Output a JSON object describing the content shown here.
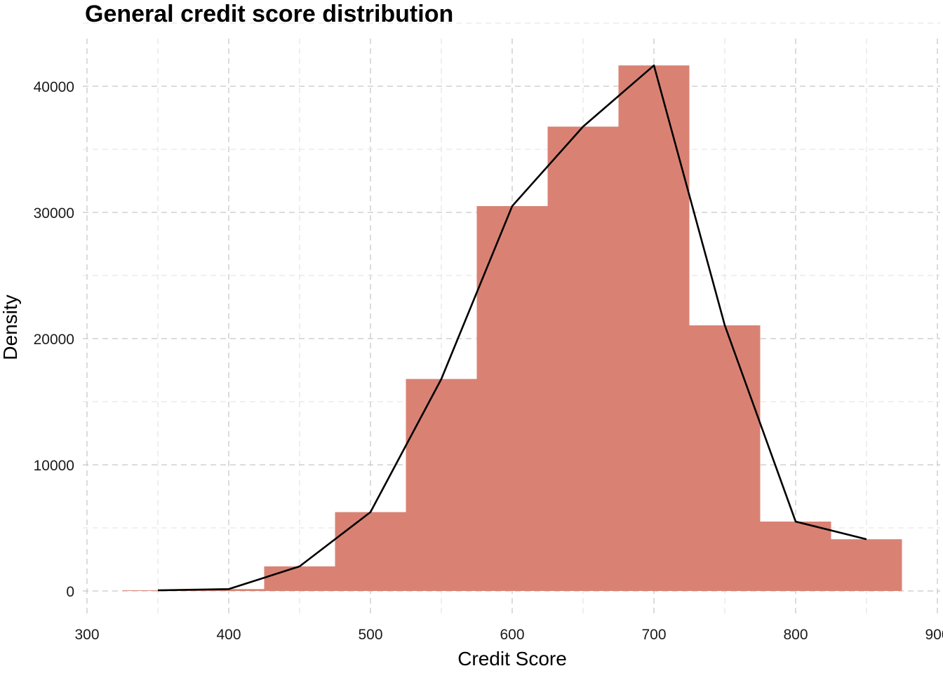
{
  "chart_data": {
    "type": "bar",
    "title": "General credit score distribution",
    "xlabel": "Credit Score",
    "ylabel": "Density",
    "xlim": [
      300,
      900
    ],
    "ylim": [
      0,
      42500
    ],
    "x_ticks": [
      300,
      400,
      500,
      600,
      700,
      800,
      900
    ],
    "x_tick_labels": [
      "300",
      "400",
      "500",
      "600",
      "700",
      "800",
      "900"
    ],
    "y_ticks": [
      0,
      10000,
      20000,
      30000,
      40000
    ],
    "y_tick_labels": [
      "0",
      "10000",
      "20000",
      "30000",
      "40000"
    ],
    "grid": true,
    "bar_color": "#d98274",
    "line_color": "#000000",
    "histogram": {
      "bin_width": 50,
      "bin_centers": [
        350,
        400,
        450,
        500,
        550,
        600,
        650,
        700,
        750,
        800,
        850
      ],
      "values": [
        50,
        150,
        1950,
        6250,
        16800,
        30500,
        36800,
        41650,
        21050,
        5500,
        4100
      ]
    },
    "line": {
      "x": [
        350,
        400,
        450,
        500,
        550,
        600,
        650,
        700,
        750,
        800,
        850
      ],
      "y": [
        50,
        150,
        1950,
        6250,
        16800,
        30500,
        36800,
        41650,
        21050,
        5500,
        4100
      ]
    }
  }
}
